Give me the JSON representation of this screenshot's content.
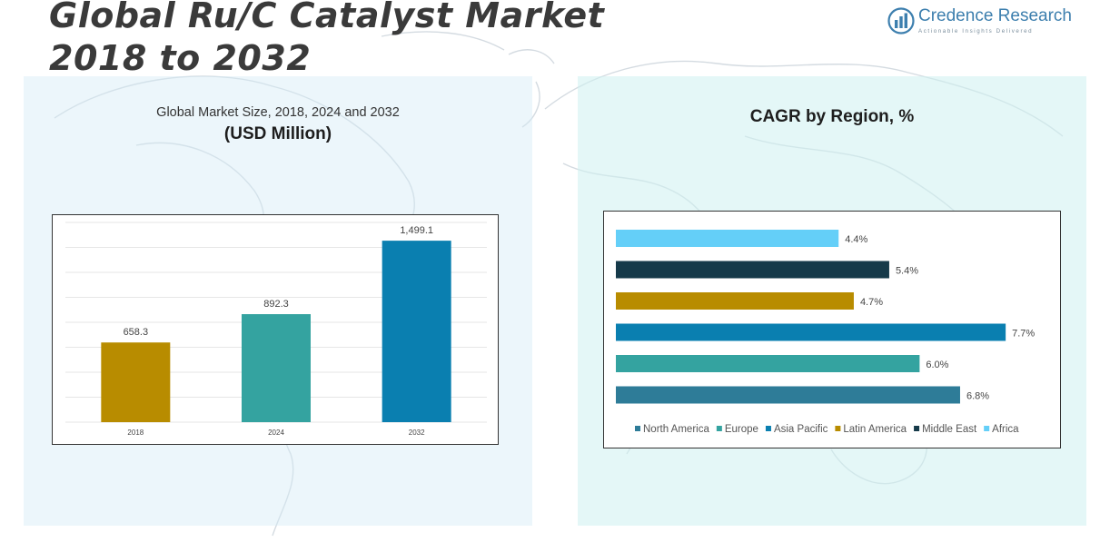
{
  "header": {
    "title_line1": "Global Ru/C Catalyst Market",
    "title_line2": "2018 to 2032",
    "logo_name": "Credence Research",
    "logo_tagline": "Actionable Insights Delivered"
  },
  "colors": {
    "panel_left": "#d5eaf6",
    "panel_right": "#cef0f0"
  },
  "chart_data": [
    {
      "type": "bar",
      "title": "Global Market Size, 2018, 2024 and 2032",
      "subtitle": "(USD Million)",
      "categories": [
        "2018",
        "2024",
        "2032"
      ],
      "values": [
        658.3,
        892.3,
        1499.1
      ],
      "value_labels": [
        "658.3",
        "892.3",
        "1,499.1"
      ],
      "colors": [
        "#b88c00",
        "#34a3a0",
        "#0a7fb0"
      ],
      "ylim": [
        0,
        1650
      ],
      "grid": true
    },
    {
      "type": "bar",
      "orientation": "horizontal",
      "title": "CAGR by Region, %",
      "categories": [
        "Africa",
        "Middle East",
        "Latin America",
        "Asia Pacific",
        "Europe",
        "North America"
      ],
      "values": [
        4.4,
        5.4,
        4.7,
        7.7,
        6.0,
        6.8
      ],
      "value_labels": [
        "4.4%",
        "5.4%",
        "4.7%",
        "7.7%",
        "6.0%",
        "6.8%"
      ],
      "colors": [
        "#64cff8",
        "#163a4a",
        "#b88c00",
        "#0a7fb0",
        "#34a3a0",
        "#2e7c98"
      ],
      "xlim": [
        0,
        8.2
      ],
      "legend": {
        "placement": "bottom",
        "items": [
          {
            "label": "North America",
            "color": "#2e7c98"
          },
          {
            "label": "Europe",
            "color": "#34a3a0"
          },
          {
            "label": "Asia Pacific",
            "color": "#0a7fb0"
          },
          {
            "label": "Latin America",
            "color": "#b88c00"
          },
          {
            "label": "Middle East",
            "color": "#163a4a"
          },
          {
            "label": "Africa",
            "color": "#64cff8"
          }
        ]
      }
    }
  ]
}
